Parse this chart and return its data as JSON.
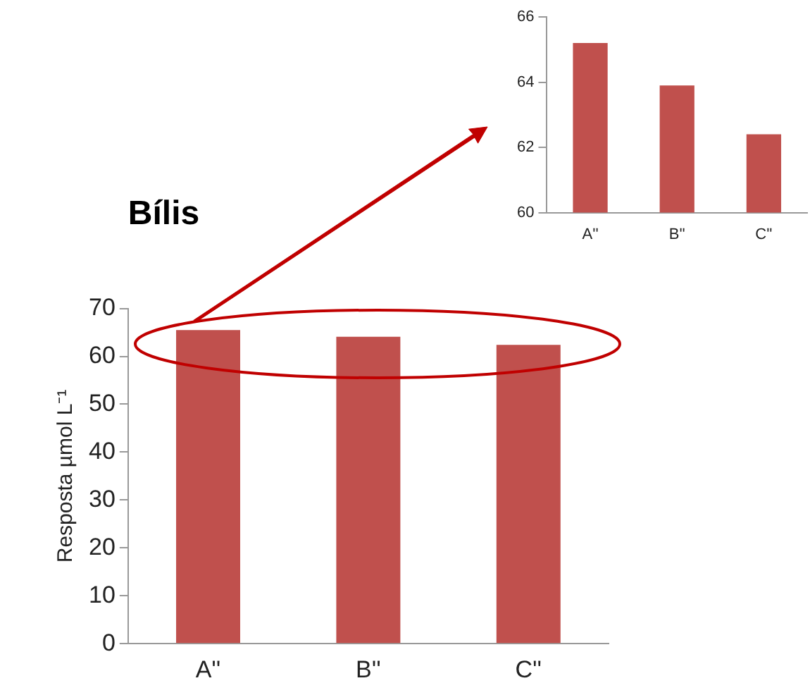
{
  "chart_data": [
    {
      "type": "bar",
      "title": "Bílis",
      "ylabel": "Resposta µmol L⁻¹",
      "categories": [
        "A''",
        "B''",
        "C''"
      ],
      "values": [
        65.5,
        64.1,
        62.4
      ],
      "color": "#c0504d",
      "ylim": [
        0,
        70
      ],
      "yticks": [
        0,
        10,
        20,
        30,
        40,
        50,
        60,
        70
      ],
      "grid": false,
      "legend": false
    },
    {
      "type": "bar",
      "categories": [
        "A''",
        "B''",
        "C''"
      ],
      "values": [
        65.2,
        63.9,
        62.4
      ],
      "color": "#c0504d",
      "ylim": [
        60,
        66
      ],
      "yticks": [
        60,
        62,
        64,
        66
      ],
      "grid": false,
      "legend": false
    }
  ]
}
